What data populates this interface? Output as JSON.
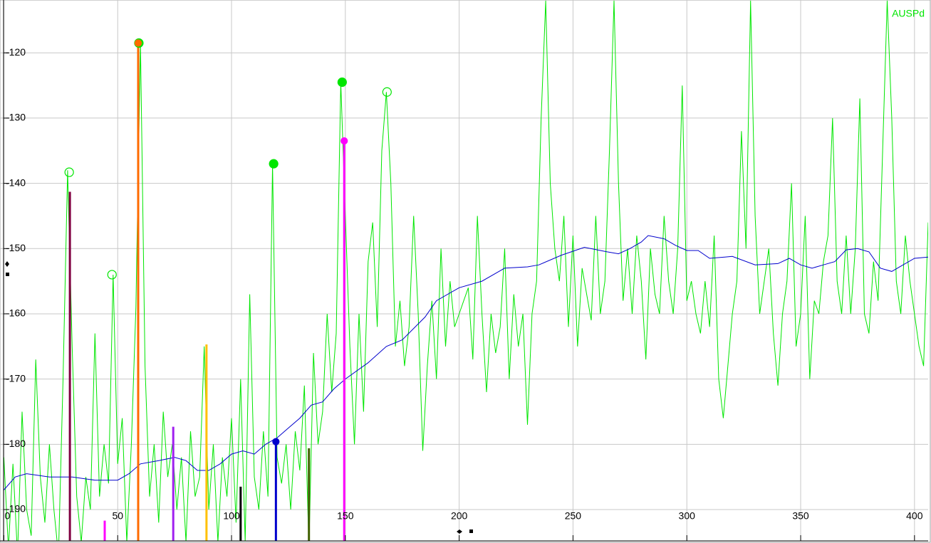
{
  "chart_data": {
    "type": "line",
    "xlim": [
      -1.7,
      406
    ],
    "ylim": [
      -194.8,
      -111.9
    ],
    "xticks": [
      0,
      50,
      100,
      150,
      200,
      250,
      300,
      350,
      400
    ],
    "yticks": [
      -120,
      -130,
      -140,
      -150,
      -160,
      -170,
      -180,
      -190
    ],
    "grid": true,
    "legend": "top-right",
    "series": [
      {
        "name": "AUSPd",
        "color": "#00e600",
        "x": [
          0,
          2,
          4,
          6,
          8,
          10,
          12,
          14,
          16,
          18,
          20,
          22,
          24,
          26,
          28,
          30,
          32,
          34,
          36,
          38,
          40,
          42,
          44,
          46,
          48,
          50,
          52,
          54,
          56,
          58,
          60,
          62,
          64,
          66,
          68,
          70,
          72,
          74,
          76,
          78,
          80,
          82,
          84,
          86,
          88,
          90,
          92,
          94,
          96,
          98,
          100,
          102,
          104,
          106,
          108,
          110,
          112,
          114,
          116,
          118,
          120,
          122,
          124,
          126,
          128,
          130,
          132,
          134,
          136,
          138,
          140,
          142,
          144,
          146,
          148,
          150,
          152,
          154,
          156,
          158,
          160,
          162,
          164,
          166,
          168,
          170,
          172,
          174,
          176,
          178,
          180,
          182,
          184,
          186,
          188,
          190,
          192,
          194,
          196,
          198,
          200,
          202,
          204,
          206,
          208,
          210,
          212,
          214,
          216,
          218,
          220,
          222,
          224,
          226,
          228,
          230,
          232,
          234,
          236,
          238,
          240,
          242,
          244,
          246,
          248,
          250,
          252,
          254,
          256,
          258,
          260,
          262,
          264,
          266,
          268,
          270,
          272,
          274,
          276,
          278,
          280,
          282,
          284,
          286,
          288,
          290,
          292,
          294,
          296,
          298,
          300,
          302,
          304,
          306,
          308,
          310,
          312,
          314,
          316,
          318,
          320,
          322,
          324,
          326,
          328,
          330,
          332,
          334,
          336,
          338,
          340,
          342,
          344,
          346,
          348,
          350,
          352,
          354,
          356,
          358,
          360,
          362,
          364,
          366,
          368,
          370,
          372,
          374,
          376,
          378,
          380,
          382,
          384,
          386,
          388,
          390,
          392,
          394,
          396,
          398,
          400,
          402,
          404,
          406
        ],
        "values": [
          -182,
          -196,
          -183,
          -197,
          -175,
          -190,
          -194,
          -167,
          -185,
          -192,
          -180,
          -190,
          -197,
          -170,
          -138,
          -165,
          -188,
          -195,
          -185,
          -190,
          -163,
          -188,
          -180,
          -186,
          -154,
          -183,
          -176,
          -195,
          -180,
          -159,
          -118.5,
          -168,
          -188,
          -180,
          -192,
          -175,
          -185,
          -180,
          -190,
          -182,
          -195,
          -178,
          -188,
          -185,
          -165,
          -190,
          -180,
          -195,
          -182,
          -188,
          -176,
          -192,
          -170,
          -195,
          -157,
          -185,
          -190,
          -178,
          -188,
          -137,
          -182,
          -186,
          -180,
          -190,
          -178,
          -184,
          -171,
          -196,
          -166,
          -180,
          -175,
          -160,
          -172,
          -163,
          -124.5,
          -145,
          -165,
          -180,
          -160,
          -175,
          -152,
          -146,
          -162,
          -135,
          -126,
          -140,
          -165,
          -158,
          -168,
          -162,
          -145,
          -160,
          -181,
          -168,
          -158,
          -170,
          -150,
          -165,
          -155,
          -162,
          -160,
          -158,
          -156,
          -167,
          -145,
          -160,
          -172,
          -160,
          -166,
          -162,
          -150,
          -170,
          -157,
          -165,
          -160,
          -177,
          -160,
          -155,
          -130,
          -112,
          -140,
          -150,
          -155,
          -145,
          -162,
          -148,
          -165,
          -153,
          -157,
          -161,
          -145,
          -160,
          -155,
          -135,
          -112,
          -140,
          -158,
          -150,
          -160,
          -148,
          -155,
          -167,
          -150,
          -157,
          -160,
          -145,
          -155,
          -160,
          -150,
          -125,
          -158,
          -155,
          -160,
          -163,
          -155,
          -162,
          -148,
          -170,
          -176,
          -168,
          -160,
          -155,
          -132,
          -150,
          -112,
          -145,
          -160,
          -155,
          -150,
          -163,
          -171,
          -160,
          -155,
          -140,
          -165,
          -160,
          -145,
          -170,
          -158,
          -160,
          -152,
          -148,
          -130,
          -155,
          -160,
          -148,
          -160,
          -150,
          -127,
          -160,
          -163,
          -152,
          -158,
          -135,
          -112,
          -130,
          -155,
          -160,
          -148,
          -155,
          -160,
          -165,
          -168,
          -146
        ]
      },
      {
        "color": "#0000cc",
        "x": [
          0,
          5,
          10,
          20,
          30,
          40,
          50,
          55,
          60,
          68,
          75,
          80,
          85,
          90,
          95,
          100,
          105,
          110,
          115,
          120,
          125,
          130,
          135,
          140,
          145,
          150,
          160,
          168,
          175,
          185,
          190,
          200,
          210,
          220,
          230,
          235,
          245,
          255,
          265,
          270,
          275,
          280,
          283,
          290,
          295,
          300,
          305,
          310,
          320,
          330,
          340,
          345,
          350,
          355,
          360,
          365,
          370,
          375,
          380,
          385,
          390,
          395,
          400,
          406
        ],
        "values": [
          -187,
          -185,
          -184.5,
          -185,
          -185,
          -185.5,
          -185.5,
          -184.5,
          -183,
          -182.5,
          -182,
          -182.5,
          -184,
          -184,
          -183,
          -181.5,
          -181,
          -181.5,
          -180,
          -179,
          -177.5,
          -176,
          -174,
          -173.5,
          -171.5,
          -170,
          -167.5,
          -165,
          -164,
          -160.5,
          -158,
          -156,
          -155,
          -153,
          -152.8,
          -152.5,
          -151,
          -149.8,
          -150.5,
          -150.8,
          -150,
          -149,
          -148,
          -148.5,
          -149.5,
          -150.3,
          -150.3,
          -151.5,
          -151.2,
          -152.5,
          -152.3,
          -151.5,
          -152.5,
          -153,
          -152.5,
          -152,
          -150.2,
          -150,
          -150.5,
          -153,
          -153.5,
          -152.5,
          -151.5,
          -151.3
        ]
      }
    ],
    "stems": [
      {
        "x": 29,
        "value": -141.3,
        "color": "#800040"
      },
      {
        "x": 44.3,
        "value": -191.7,
        "color": "#ff00ff"
      },
      {
        "x": 59,
        "value": -118.5,
        "color": "#ff6a00"
      },
      {
        "x": 74.4,
        "value": -177.3,
        "color": "#a020f0"
      },
      {
        "x": 89,
        "value": -164.7,
        "color": "#ffc000"
      },
      {
        "x": 104,
        "value": -186.5,
        "color": "#000000"
      },
      {
        "x": 119.5,
        "value": -179.6,
        "color": "#0000cc"
      },
      {
        "x": 134,
        "value": -180.6,
        "color": "#406000"
      },
      {
        "x": 149.5,
        "value": -133.5,
        "color": "#ff00ff"
      }
    ],
    "markers": [
      {
        "x": 28.7,
        "value": -138.3,
        "filled": false,
        "color": "#00e600"
      },
      {
        "x": 47.5,
        "value": -154,
        "filled": false,
        "color": "#00e600"
      },
      {
        "x": 59.3,
        "value": -118.5,
        "filled": true,
        "color": "#00e600"
      },
      {
        "x": 118.5,
        "value": -137,
        "filled": true,
        "color": "#00e600"
      },
      {
        "x": 148.6,
        "value": -124.5,
        "filled": true,
        "color": "#00e600"
      },
      {
        "x": 168.3,
        "value": -126,
        "filled": false,
        "color": "#00e600"
      },
      {
        "x": 59,
        "value": -118.5,
        "filled": true,
        "color": "#ff6a00"
      },
      {
        "x": 119.5,
        "value": -179.6,
        "filled": true,
        "color": "#0000cc"
      },
      {
        "x": 149.5,
        "value": -133.5,
        "filled": true,
        "color": "#ff00ff"
      }
    ]
  }
}
